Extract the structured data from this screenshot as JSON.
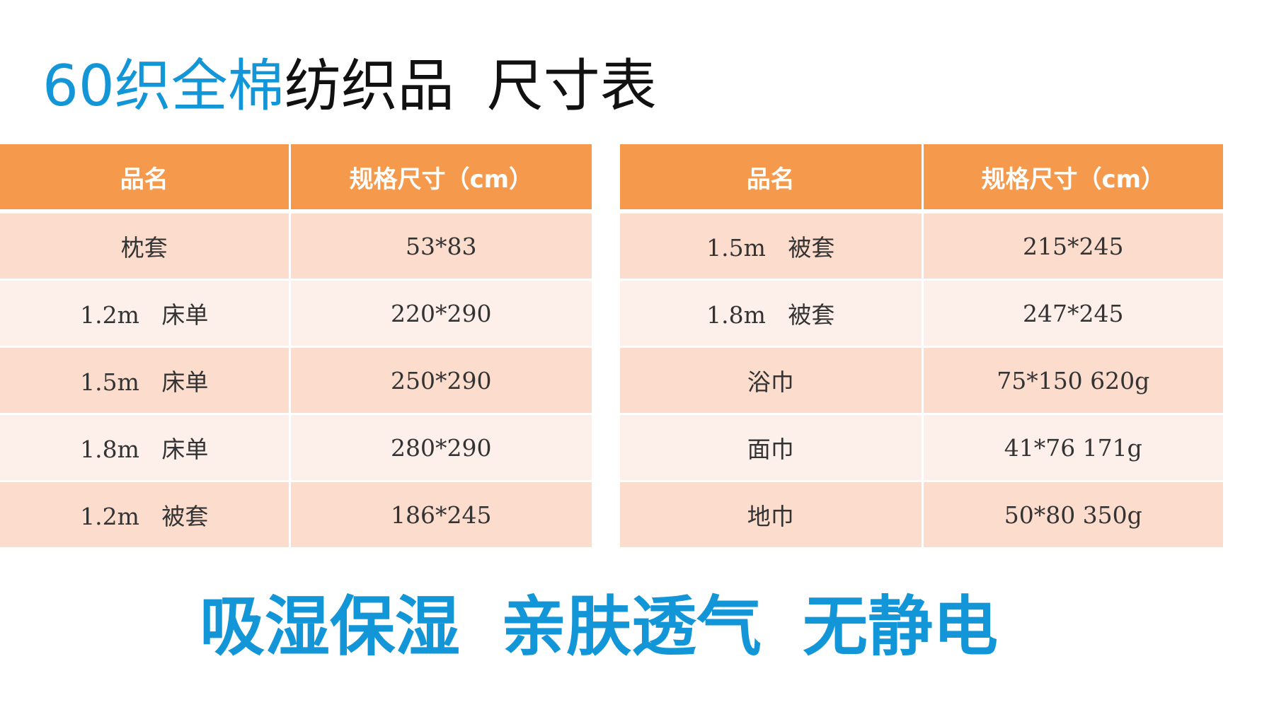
{
  "title": {
    "highlight": "60织全棉",
    "rest": "纺织品",
    "suffix": "尺寸表"
  },
  "colors": {
    "accent_blue": "#1296d8",
    "header_orange": "#f59a4c",
    "row_dark": "#fbdccd",
    "row_light": "#fdefea"
  },
  "left_table": {
    "headers": [
      "品名",
      "规格尺寸（cm）"
    ],
    "rows": [
      [
        "枕套",
        "53*83"
      ],
      [
        "1.2m   床单",
        "220*290"
      ],
      [
        "1.5m   床单",
        "250*290"
      ],
      [
        "1.8m   床单",
        "280*290"
      ],
      [
        "1.2m   被套",
        "186*245"
      ]
    ]
  },
  "right_table": {
    "headers": [
      "品名",
      "规格尺寸（cm）"
    ],
    "rows": [
      [
        "1.5m   被套",
        "215*245"
      ],
      [
        "1.8m   被套",
        "247*245"
      ],
      [
        "浴巾",
        "75*150 620g"
      ],
      [
        "面巾",
        "41*76 171g"
      ],
      [
        "地巾",
        "50*80 350g"
      ]
    ]
  },
  "slogans": [
    "吸湿保湿",
    "亲肤透气",
    "无静电"
  ]
}
